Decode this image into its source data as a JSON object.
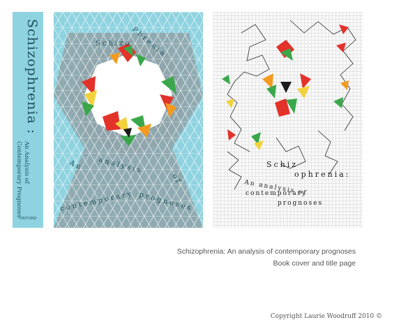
{
  "spine": {
    "title": "Schizophrenia :",
    "subtitle": "An Analysis of",
    "subtitle2": "Contemporary Prognoses",
    "publisher": "OXFORD"
  },
  "front": {
    "t1": "Schizo",
    "t2": "Phrenia",
    "sub1": "An",
    "sub2": "analysis",
    "sub3": "of",
    "sub4": "contemporary",
    "sub5": "prognoses"
  },
  "titlepage": {
    "t1": "Schiz",
    "t2": "ophrenia:",
    "sub1": "An analysis of",
    "sub2": "contemporary",
    "sub3": "prognoses"
  },
  "caption": {
    "line1": "Schizophrenia: An analysis of contemporary prognoses",
    "line2": "Book cover and title page"
  },
  "copyright": "Copyright Laurie Woodruff 2010 ©",
  "colors": {
    "cyan": "#8fd3e0",
    "grey": "#8fa6ac",
    "red": "#e2322a",
    "orange": "#f39a1f",
    "green": "#3aa84a",
    "yellow": "#f2d23c"
  }
}
